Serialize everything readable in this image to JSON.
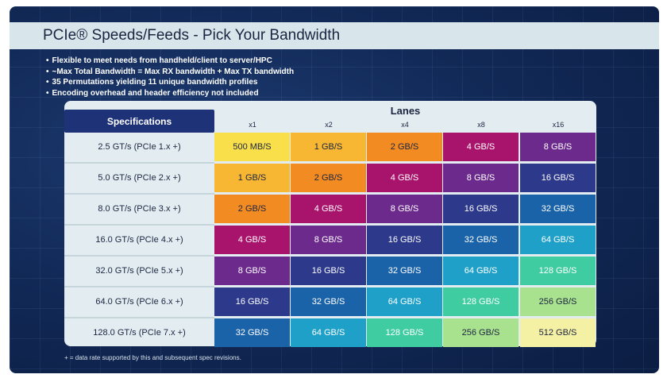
{
  "title": "PCIe® Speeds/Feeds - Pick Your Bandwidth",
  "bullets": [
    "Flexible to meet needs from handheld/client to server/HPC",
    "~Max Total Bandwidth = Max RX bandwidth + Max TX bandwidth",
    "35 Permutations yielding 11 unique bandwidth profiles",
    "Encoding overhead and header efficiency not included"
  ],
  "table": {
    "spec_header": "Specifications",
    "lanes_header": "Lanes",
    "lanes": [
      "x1",
      "x2",
      "x4",
      "x8",
      "x16"
    ],
    "rows": [
      {
        "spec": "2.5 GT/s (PCIe 1.x +)",
        "values": [
          "500 MB/S",
          "1 GB/S",
          "2 GB/S",
          "4 GB/S",
          "8 GB/S"
        ]
      },
      {
        "spec": "5.0 GT/s (PCIe 2.x +)",
        "values": [
          "1 GB/S",
          "2 GB/S",
          "4 GB/S",
          "8 GB/S",
          "16 GB/S"
        ]
      },
      {
        "spec": "8.0 GT/s (PCIe 3.x +)",
        "values": [
          "2 GB/S",
          "4 GB/S",
          "8 GB/S",
          "16 GB/S",
          "32 GB/S"
        ]
      },
      {
        "spec": "16.0 GT/s (PCIe 4.x +)",
        "values": [
          "4 GB/S",
          "8 GB/S",
          "16 GB/S",
          "32 GB/S",
          "64 GB/S"
        ]
      },
      {
        "spec": "32.0 GT/s (PCIe 5.x +)",
        "values": [
          "8 GB/S",
          "16 GB/S",
          "32 GB/S",
          "64 GB/S",
          "128 GB/S"
        ]
      },
      {
        "spec": "64.0 GT/s (PCIe 6.x +)",
        "values": [
          "16 GB/S",
          "32 GB/S",
          "64 GB/S",
          "128 GB/S",
          "256 GB/S"
        ]
      },
      {
        "spec": "128.0 GT/s (PCIe 7.x +)",
        "values": [
          "32 GB/S",
          "64 GB/S",
          "128 GB/S",
          "256 GB/S",
          "512 GB/S"
        ]
      }
    ],
    "value_colors": {
      "500 MB/S": "#f9e04b",
      "1 GB/S": "#f7b733",
      "2 GB/S": "#f28c22",
      "4 GB/S": "#a8146b",
      "8 GB/S": "#6b2a8c",
      "16 GB/S": "#2d3a8c",
      "32 GB/S": "#1b63a8",
      "64 GB/S": "#1fa0c8",
      "128 GB/S": "#3fcca0",
      "256 GB/S": "#a9e28f",
      "512 GB/S": "#f4f0a4"
    }
  },
  "footnote": "+ = data rate supported by this and subsequent spec revisions."
}
